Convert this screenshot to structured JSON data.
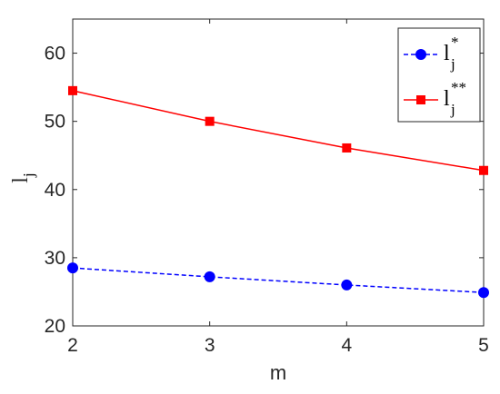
{
  "chart_data": {
    "type": "line",
    "x": [
      2,
      3,
      4,
      5
    ],
    "xlabel": "m",
    "ylabel": {
      "base": "l",
      "sub": "j"
    },
    "xlim": [
      2,
      5
    ],
    "ylim": [
      20,
      65
    ],
    "xticks": [
      "2",
      "3",
      "4",
      "5"
    ],
    "yticks": [
      "20",
      "30",
      "40",
      "50",
      "60"
    ],
    "grid": false,
    "legend_position": "top-right",
    "series": [
      {
        "name": "l_j^*",
        "legend": {
          "base": "l",
          "sub": "j",
          "sup": "*"
        },
        "values": [
          28.5,
          27.2,
          26.0,
          24.9
        ],
        "color": "#0000ff",
        "line_style": "dashed",
        "marker": "circle"
      },
      {
        "name": "l_j^**",
        "legend": {
          "base": "l",
          "sub": "j",
          "sup": "**"
        },
        "values": [
          54.5,
          50.0,
          46.1,
          42.8
        ],
        "color": "#ff0000",
        "line_style": "solid",
        "marker": "square"
      }
    ]
  }
}
